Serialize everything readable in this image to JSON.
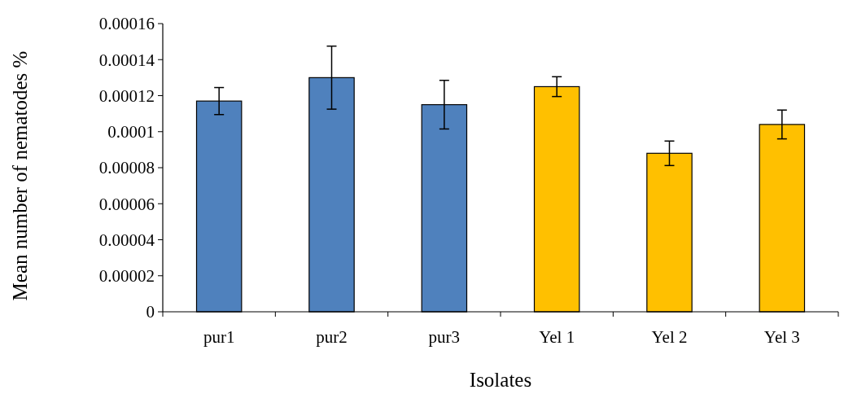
{
  "chart_data": {
    "type": "bar",
    "xlabel": "Isolates",
    "ylabel": "Mean number of nematodes %",
    "categories": [
      "pur1",
      "pur2",
      "pur3",
      "Yel 1",
      "Yel 2",
      "Yel 3"
    ],
    "values": [
      0.000117,
      0.00013,
      0.000115,
      0.000125,
      8.8e-05,
      0.000104
    ],
    "errors": [
      7.5e-06,
      1.75e-05,
      1.35e-05,
      5.5e-06,
      6.8e-06,
      8e-06
    ],
    "colors": [
      "#4f81bd",
      "#4f81bd",
      "#4f81bd",
      "#ffc000",
      "#ffc000",
      "#ffc000"
    ],
    "ylim": [
      0,
      0.00016
    ],
    "yticks": [
      0,
      {
        "value": 2e-05,
        "label": "0.00002"
      },
      {
        "value": 4e-05,
        "label": "0.00004"
      },
      {
        "value": 6e-05,
        "label": "0.00006"
      },
      {
        "value": 8e-05,
        "label": "0.00008"
      },
      0.0001,
      0.00012,
      0.00014,
      0.00016
    ],
    "grid": false
  }
}
